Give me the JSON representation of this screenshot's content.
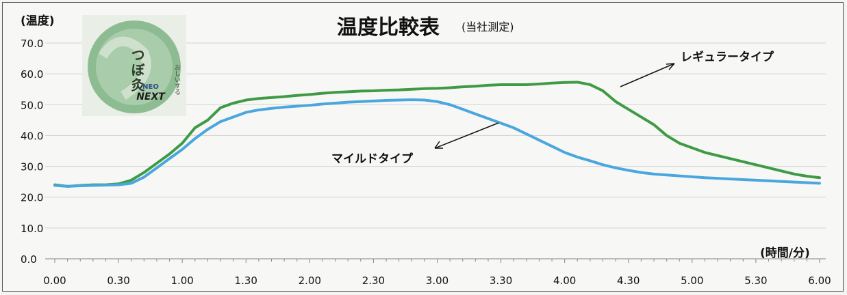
{
  "chart_data": {
    "type": "line",
    "title": "温度比較表",
    "subtitle": "(当社測定)",
    "ylabel": "(温度)",
    "xlabel": "(時間/分)",
    "ylim": [
      0,
      70
    ],
    "yticks": [
      "0.0",
      "10.0",
      "20.0",
      "30.0",
      "40.0",
      "50.0",
      "60.0",
      "70.0"
    ],
    "xticks": [
      "0.00",
      "0.30",
      "1.00",
      "1.30",
      "2.00",
      "2.30",
      "3.00",
      "3.30",
      "4.00",
      "4.30",
      "5.00",
      "5.30",
      "6.00"
    ],
    "grid": true,
    "x_minutes": [
      0,
      0.1,
      0.2,
      0.3,
      0.4,
      0.5,
      0.6,
      0.7,
      0.8,
      0.9,
      1.0,
      1.1,
      1.2,
      1.3,
      1.4,
      1.5,
      1.6,
      1.7,
      1.8,
      1.9,
      2.0,
      2.1,
      2.2,
      2.3,
      2.4,
      2.5,
      2.6,
      2.7,
      2.8,
      2.9,
      3.0,
      3.1,
      3.2,
      3.3,
      3.4,
      3.5,
      3.6,
      3.7,
      3.8,
      3.9,
      4.0,
      4.1,
      4.2,
      4.3,
      4.4,
      4.5,
      4.6,
      4.7,
      4.8,
      4.9,
      5.0,
      5.1,
      5.2,
      5.3,
      5.4,
      5.5,
      5.6,
      5.7,
      5.8,
      5.9,
      6.0
    ],
    "series": [
      {
        "name": "レギュラータイプ",
        "color": "#3f9a45",
        "values": [
          24.0,
          23.5,
          23.8,
          24.0,
          24.0,
          24.3,
          25.5,
          28.0,
          31.0,
          34.0,
          37.5,
          42.5,
          45.0,
          49.0,
          50.5,
          51.5,
          52.0,
          52.3,
          52.6,
          53.0,
          53.3,
          53.7,
          54.0,
          54.2,
          54.4,
          54.5,
          54.7,
          54.8,
          55.0,
          55.2,
          55.3,
          55.5,
          55.8,
          56.0,
          56.3,
          56.5,
          56.5,
          56.5,
          56.7,
          57.0,
          57.2,
          57.3,
          56.5,
          54.5,
          51.0,
          48.5,
          46.0,
          43.5,
          40.0,
          37.5,
          36.0,
          34.5,
          33.5,
          32.5,
          31.5,
          30.5,
          29.5,
          28.5,
          27.5,
          26.8,
          26.3
        ]
      },
      {
        "name": "マイルドタイプ",
        "color": "#4aa6de",
        "values": [
          23.8,
          23.5,
          23.7,
          23.8,
          23.9,
          24.0,
          24.5,
          26.5,
          29.5,
          32.5,
          35.5,
          39.0,
          42.0,
          44.5,
          46.0,
          47.5,
          48.3,
          48.8,
          49.2,
          49.5,
          49.8,
          50.2,
          50.5,
          50.8,
          51.0,
          51.2,
          51.4,
          51.5,
          51.6,
          51.5,
          51.0,
          50.0,
          48.5,
          47.0,
          45.5,
          44.0,
          42.5,
          40.5,
          38.5,
          36.5,
          34.5,
          33.0,
          31.8,
          30.5,
          29.5,
          28.7,
          28.0,
          27.5,
          27.2,
          26.9,
          26.6,
          26.3,
          26.1,
          25.9,
          25.7,
          25.5,
          25.3,
          25.1,
          24.9,
          24.7,
          24.5
        ]
      }
    ],
    "annotations": [
      {
        "text": "レギュラータイプ",
        "series": 0,
        "at_x": 4.5
      },
      {
        "text": "マイルドタイプ",
        "series": 1,
        "at_x": 3.3
      }
    ]
  },
  "product_image": {
    "lines": [
      "つぼ灸",
      "NEO",
      "NEXT"
    ],
    "small_text": "おしいする",
    "brand_color": "#7fb087"
  }
}
